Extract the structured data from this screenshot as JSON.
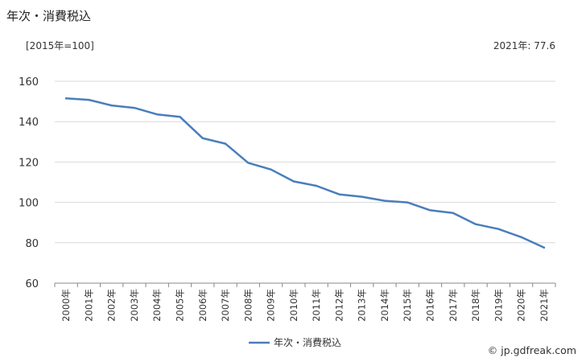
{
  "header": {
    "title": "年次・消費税込",
    "unit": "[2015年=100]",
    "latest": "2021年: 77.6"
  },
  "footer": {
    "credit": "© jp.gdfreak.com"
  },
  "colors": {
    "series": "#4a7ebb",
    "grid": "#d9d9d9",
    "axis": "#888888"
  },
  "chart_data": {
    "type": "line",
    "x": [
      "2000年",
      "2001年",
      "2002年",
      "2003年",
      "2004年",
      "2005年",
      "2006年",
      "2007年",
      "2008年",
      "2009年",
      "2010年",
      "2011年",
      "2012年",
      "2013年",
      "2014年",
      "2015年",
      "2016年",
      "2017年",
      "2018年",
      "2019年",
      "2020年",
      "2021年"
    ],
    "series": [
      {
        "name": "年次・消費税込",
        "values": [
          151.5,
          150.8,
          148.0,
          146.8,
          143.6,
          142.4,
          131.8,
          129.1,
          119.6,
          116.3,
          110.4,
          108.2,
          104.0,
          102.8,
          100.8,
          100.0,
          96.1,
          94.8,
          89.2,
          86.8,
          82.8,
          77.6
        ]
      }
    ],
    "yticks": [
      60,
      80,
      100,
      120,
      140,
      160
    ],
    "ylim": [
      60,
      160
    ],
    "grid": true,
    "legend": "bottom"
  }
}
